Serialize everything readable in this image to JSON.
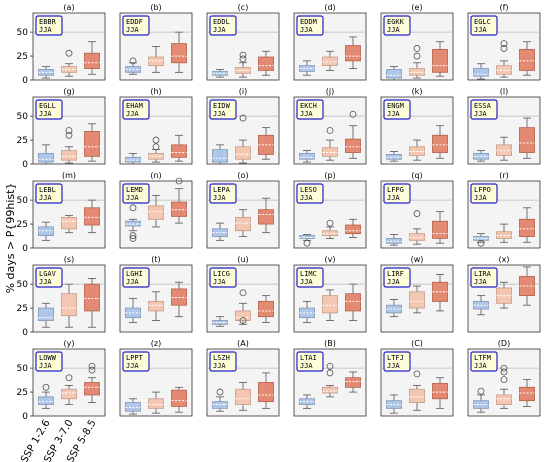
{
  "figure": {
    "ylabel": "% days > P{99hist}",
    "yticks": [
      0,
      25,
      50
    ],
    "ylim": [
      0,
      70
    ],
    "reference_line": 50,
    "scenarios": [
      "SSP 1-2.6",
      "SSP 3-7.0",
      "SSP 5-8.5"
    ],
    "colors": {
      "ssp126": "#aec7e8",
      "ssp370": "#f4c7b3",
      "ssp585": "#e48a72",
      "panel_bg": "#f4f4f4",
      "station_border": "#2222cc",
      "station_bg": "#fdfdd8"
    }
  },
  "chart_data": [
    {
      "type": "box",
      "letter": "(a)",
      "station": "EBBR",
      "season": "JJA",
      "boxes": [
        {
          "q1": 5,
          "med": 8,
          "q3": 11,
          "lo": 2,
          "hi": 14,
          "fl": []
        },
        {
          "q1": 8,
          "med": 11,
          "q3": 14,
          "lo": 4,
          "hi": 17,
          "fl": [
            28
          ]
        },
        {
          "q1": 12,
          "med": 18,
          "q3": 28,
          "lo": 6,
          "hi": 40,
          "fl": []
        }
      ]
    },
    {
      "type": "box",
      "letter": "(b)",
      "station": "EDDF",
      "season": "JJA",
      "boxes": [
        {
          "q1": 8,
          "med": 11,
          "q3": 14,
          "lo": 6,
          "hi": 18,
          "fl": [
            20
          ]
        },
        {
          "q1": 15,
          "med": 20,
          "q3": 24,
          "lo": 8,
          "hi": 35,
          "fl": []
        },
        {
          "q1": 18,
          "med": 25,
          "q3": 38,
          "lo": 8,
          "hi": 50,
          "fl": []
        }
      ]
    },
    {
      "type": "box",
      "letter": "(c)",
      "station": "EDDL",
      "season": "JJA",
      "boxes": [
        {
          "q1": 5,
          "med": 7,
          "q3": 9,
          "lo": 3,
          "hi": 11,
          "fl": []
        },
        {
          "q1": 7,
          "med": 10,
          "q3": 13,
          "lo": 3,
          "hi": 18,
          "fl": [
            22,
            26
          ]
        },
        {
          "q1": 10,
          "med": 15,
          "q3": 24,
          "lo": 5,
          "hi": 30,
          "fl": []
        }
      ]
    },
    {
      "type": "box",
      "letter": "(d)",
      "station": "EDDM",
      "season": "JJA",
      "boxes": [
        {
          "q1": 9,
          "med": 12,
          "q3": 15,
          "lo": 5,
          "hi": 20,
          "fl": []
        },
        {
          "q1": 15,
          "med": 19,
          "q3": 24,
          "lo": 10,
          "hi": 30,
          "fl": []
        },
        {
          "q1": 20,
          "med": 25,
          "q3": 36,
          "lo": 12,
          "hi": 45,
          "fl": []
        }
      ]
    },
    {
      "type": "box",
      "letter": "(e)",
      "station": "EGKK",
      "season": "JJA",
      "boxes": [
        {
          "q1": 2,
          "med": 5,
          "q3": 11,
          "lo": 0,
          "hi": 14,
          "fl": []
        },
        {
          "q1": 5,
          "med": 8,
          "q3": 12,
          "lo": 2,
          "hi": 18,
          "fl": [
            25,
            33
          ]
        },
        {
          "q1": 8,
          "med": 15,
          "q3": 32,
          "lo": 4,
          "hi": 40,
          "fl": []
        }
      ]
    },
    {
      "type": "box",
      "letter": "(f)",
      "station": "EGLC",
      "season": "JJA",
      "boxes": [
        {
          "q1": 4,
          "med": 6,
          "q3": 12,
          "lo": 1,
          "hi": 17,
          "fl": []
        },
        {
          "q1": 6,
          "med": 10,
          "q3": 15,
          "lo": 3,
          "hi": 20,
          "fl": [
            33,
            38
          ]
        },
        {
          "q1": 10,
          "med": 20,
          "q3": 32,
          "lo": 5,
          "hi": 40,
          "fl": []
        }
      ]
    },
    {
      "type": "box",
      "letter": "(g)",
      "station": "EGLL",
      "season": "JJA",
      "boxes": [
        {
          "q1": 2,
          "med": 5,
          "q3": 11,
          "lo": 0,
          "hi": 20,
          "fl": []
        },
        {
          "q1": 4,
          "med": 8,
          "q3": 14,
          "lo": 1,
          "hi": 18,
          "fl": [
            30,
            35
          ]
        },
        {
          "q1": 8,
          "med": 18,
          "q3": 34,
          "lo": 3,
          "hi": 42,
          "fl": []
        }
      ]
    },
    {
      "type": "box",
      "letter": "(h)",
      "station": "EHAM",
      "season": "JJA",
      "boxes": [
        {
          "q1": 2,
          "med": 4,
          "q3": 7,
          "lo": 0,
          "hi": 11,
          "fl": []
        },
        {
          "q1": 5,
          "med": 8,
          "q3": 11,
          "lo": 2,
          "hi": 15,
          "fl": [
            18,
            25
          ]
        },
        {
          "q1": 7,
          "med": 12,
          "q3": 20,
          "lo": 3,
          "hi": 30,
          "fl": []
        }
      ]
    },
    {
      "type": "box",
      "letter": "(i)",
      "station": "EIDW",
      "season": "JJA",
      "boxes": [
        {
          "q1": 2,
          "med": 6,
          "q3": 15,
          "lo": 0,
          "hi": 20,
          "fl": []
        },
        {
          "q1": 5,
          "med": 10,
          "q3": 18,
          "lo": 1,
          "hi": 25,
          "fl": [
            48
          ]
        },
        {
          "q1": 10,
          "med": 20,
          "q3": 30,
          "lo": 5,
          "hi": 38,
          "fl": []
        }
      ]
    },
    {
      "type": "box",
      "letter": "(j)",
      "station": "EKCH",
      "season": "JJA",
      "boxes": [
        {
          "q1": 5,
          "med": 7,
          "q3": 11,
          "lo": 2,
          "hi": 14,
          "fl": []
        },
        {
          "q1": 8,
          "med": 12,
          "q3": 17,
          "lo": 4,
          "hi": 25,
          "fl": [
            35
          ]
        },
        {
          "q1": 12,
          "med": 18,
          "q3": 26,
          "lo": 6,
          "hi": 40,
          "fl": [
            52
          ]
        }
      ]
    },
    {
      "type": "box",
      "letter": "(k)",
      "station": "ENGM",
      "season": "JJA",
      "boxes": [
        {
          "q1": 5,
          "med": 7,
          "q3": 10,
          "lo": 3,
          "hi": 13,
          "fl": []
        },
        {
          "q1": 9,
          "med": 13,
          "q3": 18,
          "lo": 4,
          "hi": 25,
          "fl": []
        },
        {
          "q1": 12,
          "med": 20,
          "q3": 30,
          "lo": 6,
          "hi": 40,
          "fl": []
        }
      ]
    },
    {
      "type": "box",
      "letter": "(l)",
      "station": "ESSA",
      "season": "JJA",
      "boxes": [
        {
          "q1": 5,
          "med": 8,
          "q3": 11,
          "lo": 3,
          "hi": 14,
          "fl": []
        },
        {
          "q1": 9,
          "med": 14,
          "q3": 20,
          "lo": 4,
          "hi": 28,
          "fl": []
        },
        {
          "q1": 12,
          "med": 22,
          "q3": 38,
          "lo": 6,
          "hi": 48,
          "fl": []
        }
      ]
    },
    {
      "type": "box",
      "letter": "(m)",
      "station": "LEBL",
      "season": "JJA",
      "boxes": [
        {
          "q1": 13,
          "med": 18,
          "q3": 22,
          "lo": 8,
          "hi": 27,
          "fl": []
        },
        {
          "q1": 20,
          "med": 28,
          "q3": 32,
          "lo": 16,
          "hi": 34,
          "fl": []
        },
        {
          "q1": 24,
          "med": 32,
          "q3": 42,
          "lo": 16,
          "hi": 50,
          "fl": []
        }
      ]
    },
    {
      "type": "box",
      "letter": "(n)",
      "station": "LEMD",
      "season": "JJA",
      "boxes": [
        {
          "q1": 23,
          "med": 25,
          "q3": 28,
          "lo": 18,
          "hi": 30,
          "fl": [
            10,
            13,
            42
          ]
        },
        {
          "q1": 30,
          "med": 38,
          "q3": 44,
          "lo": 22,
          "hi": 55,
          "fl": []
        },
        {
          "q1": 33,
          "med": 40,
          "q3": 48,
          "lo": 26,
          "hi": 62,
          "fl": [
            70
          ]
        }
      ]
    },
    {
      "type": "box",
      "letter": "(o)",
      "station": "LEPA",
      "season": "JJA",
      "boxes": [
        {
          "q1": 12,
          "med": 16,
          "q3": 20,
          "lo": 8,
          "hi": 26,
          "fl": []
        },
        {
          "q1": 18,
          "med": 26,
          "q3": 32,
          "lo": 12,
          "hi": 40,
          "fl": []
        },
        {
          "q1": 25,
          "med": 35,
          "q3": 40,
          "lo": 16,
          "hi": 52,
          "fl": []
        }
      ]
    },
    {
      "type": "box",
      "letter": "(p)",
      "station": "LESO",
      "season": "JJA",
      "boxes": [
        {
          "q1": 10,
          "med": 11,
          "q3": 13,
          "lo": 8,
          "hi": 14,
          "fl": [
            5
          ]
        },
        {
          "q1": 13,
          "med": 15,
          "q3": 18,
          "lo": 10,
          "hi": 22,
          "fl": [
            26
          ]
        },
        {
          "q1": 15,
          "med": 18,
          "q3": 24,
          "lo": 11,
          "hi": 30,
          "fl": []
        }
      ]
    },
    {
      "type": "box",
      "letter": "(q)",
      "station": "LFPG",
      "season": "JJA",
      "boxes": [
        {
          "q1": 5,
          "med": 7,
          "q3": 10,
          "lo": 3,
          "hi": 14,
          "fl": []
        },
        {
          "q1": 8,
          "med": 11,
          "q3": 15,
          "lo": 4,
          "hi": 20,
          "fl": [
            36
          ]
        },
        {
          "q1": 10,
          "med": 15,
          "q3": 28,
          "lo": 5,
          "hi": 38,
          "fl": []
        }
      ]
    },
    {
      "type": "box",
      "letter": "(r)",
      "station": "LFPO",
      "season": "JJA",
      "boxes": [
        {
          "q1": 8,
          "med": 10,
          "q3": 12,
          "lo": 6,
          "hi": 15,
          "fl": [
            5
          ]
        },
        {
          "q1": 10,
          "med": 13,
          "q3": 17,
          "lo": 6,
          "hi": 25,
          "fl": []
        },
        {
          "q1": 12,
          "med": 20,
          "q3": 30,
          "lo": 6,
          "hi": 42,
          "fl": []
        }
      ]
    },
    {
      "type": "box",
      "letter": "(s)",
      "station": "LGAV",
      "season": "JJA",
      "boxes": [
        {
          "q1": 12,
          "med": 15,
          "q3": 25,
          "lo": 5,
          "hi": 30,
          "fl": []
        },
        {
          "q1": 17,
          "med": 25,
          "q3": 40,
          "lo": 5,
          "hi": 50,
          "fl": []
        },
        {
          "q1": 22,
          "med": 35,
          "q3": 50,
          "lo": 5,
          "hi": 56,
          "fl": []
        }
      ]
    },
    {
      "type": "box",
      "letter": "(t)",
      "station": "LGHI",
      "season": "JJA",
      "boxes": [
        {
          "q1": 15,
          "med": 20,
          "q3": 25,
          "lo": 10,
          "hi": 35,
          "fl": []
        },
        {
          "q1": 22,
          "med": 28,
          "q3": 32,
          "lo": 12,
          "hi": 42,
          "fl": []
        },
        {
          "q1": 28,
          "med": 36,
          "q3": 45,
          "lo": 16,
          "hi": 52,
          "fl": []
        }
      ]
    },
    {
      "type": "box",
      "letter": "(u)",
      "station": "LICG",
      "season": "JJA",
      "boxes": [
        {
          "q1": 8,
          "med": 10,
          "q3": 12,
          "lo": 6,
          "hi": 16,
          "fl": []
        },
        {
          "q1": 12,
          "med": 15,
          "q3": 22,
          "lo": 8,
          "hi": 30,
          "fl": [
            12,
            41
          ]
        },
        {
          "q1": 16,
          "med": 22,
          "q3": 32,
          "lo": 10,
          "hi": 38,
          "fl": []
        }
      ]
    },
    {
      "type": "box",
      "letter": "(v)",
      "station": "LIMC",
      "season": "JJA",
      "boxes": [
        {
          "q1": 15,
          "med": 20,
          "q3": 25,
          "lo": 10,
          "hi": 32,
          "fl": []
        },
        {
          "q1": 20,
          "med": 28,
          "q3": 38,
          "lo": 12,
          "hi": 44,
          "fl": []
        },
        {
          "q1": 22,
          "med": 32,
          "q3": 40,
          "lo": 12,
          "hi": 50,
          "fl": []
        }
      ]
    },
    {
      "type": "box",
      "letter": "(w)",
      "station": "LIRF",
      "season": "JJA",
      "boxes": [
        {
          "q1": 20,
          "med": 24,
          "q3": 28,
          "lo": 16,
          "hi": 34,
          "fl": []
        },
        {
          "q1": 25,
          "med": 32,
          "q3": 42,
          "lo": 20,
          "hi": 48,
          "fl": []
        },
        {
          "q1": 32,
          "med": 42,
          "q3": 52,
          "lo": 22,
          "hi": 60,
          "fl": []
        }
      ]
    },
    {
      "type": "box",
      "letter": "(x)",
      "station": "LIRA",
      "season": "JJA",
      "boxes": [
        {
          "q1": 24,
          "med": 28,
          "q3": 32,
          "lo": 18,
          "hi": 38,
          "fl": []
        },
        {
          "q1": 30,
          "med": 38,
          "q3": 46,
          "lo": 25,
          "hi": 52,
          "fl": []
        },
        {
          "q1": 38,
          "med": 48,
          "q3": 58,
          "lo": 28,
          "hi": 68,
          "fl": []
        }
      ]
    },
    {
      "type": "box",
      "letter": "(y)",
      "station": "LOWW",
      "season": "JJA",
      "boxes": [
        {
          "q1": 12,
          "med": 15,
          "q3": 20,
          "lo": 8,
          "hi": 25,
          "fl": [
            30
          ]
        },
        {
          "q1": 18,
          "med": 24,
          "q3": 28,
          "lo": 12,
          "hi": 32,
          "fl": [
            40
          ]
        },
        {
          "q1": 22,
          "med": 30,
          "q3": 35,
          "lo": 14,
          "hi": 40,
          "fl": [
            48,
            52
          ]
        }
      ]
    },
    {
      "type": "box",
      "letter": "(z)",
      "station": "LPPT",
      "season": "JJA",
      "boxes": [
        {
          "q1": 5,
          "med": 9,
          "q3": 14,
          "lo": 2,
          "hi": 18,
          "fl": []
        },
        {
          "q1": 8,
          "med": 12,
          "q3": 18,
          "lo": 3,
          "hi": 25,
          "fl": []
        },
        {
          "q1": 10,
          "med": 16,
          "q3": 27,
          "lo": 4,
          "hi": 30,
          "fl": []
        }
      ]
    },
    {
      "type": "box",
      "letter": "(A)",
      "station": "LSZH",
      "season": "JJA",
      "boxes": [
        {
          "q1": 8,
          "med": 12,
          "q3": 15,
          "lo": 5,
          "hi": 20,
          "fl": [
            25
          ]
        },
        {
          "q1": 12,
          "med": 18,
          "q3": 28,
          "lo": 6,
          "hi": 35,
          "fl": []
        },
        {
          "q1": 15,
          "med": 22,
          "q3": 35,
          "lo": 8,
          "hi": 45,
          "fl": []
        }
      ]
    },
    {
      "type": "box",
      "letter": "(B)",
      "station": "LTAI",
      "season": "JJA",
      "boxes": [
        {
          "q1": 12,
          "med": 15,
          "q3": 18,
          "lo": 8,
          "hi": 22,
          "fl": []
        },
        {
          "q1": 24,
          "med": 26,
          "q3": 30,
          "lo": 20,
          "hi": 32,
          "fl": [
            45,
            52
          ]
        },
        {
          "q1": 30,
          "med": 36,
          "q3": 40,
          "lo": 25,
          "hi": 46,
          "fl": []
        }
      ]
    },
    {
      "type": "box",
      "letter": "(C)",
      "station": "LTFJ",
      "season": "JJA",
      "boxes": [
        {
          "q1": 8,
          "med": 12,
          "q3": 16,
          "lo": 3,
          "hi": 22,
          "fl": []
        },
        {
          "q1": 14,
          "med": 20,
          "q3": 28,
          "lo": 6,
          "hi": 32,
          "fl": [
            44
          ]
        },
        {
          "q1": 18,
          "med": 25,
          "q3": 34,
          "lo": 8,
          "hi": 40,
          "fl": []
        }
      ]
    },
    {
      "type": "box",
      "letter": "(D)",
      "station": "LTFM",
      "season": "JJA",
      "boxes": [
        {
          "q1": 8,
          "med": 12,
          "q3": 16,
          "lo": 4,
          "hi": 22,
          "fl": [
            26
          ]
        },
        {
          "q1": 12,
          "med": 18,
          "q3": 22,
          "lo": 8,
          "hi": 28,
          "fl": [
            38,
            46,
            50
          ]
        },
        {
          "q1": 16,
          "med": 24,
          "q3": 30,
          "lo": 10,
          "hi": 38,
          "fl": []
        }
      ]
    }
  ]
}
